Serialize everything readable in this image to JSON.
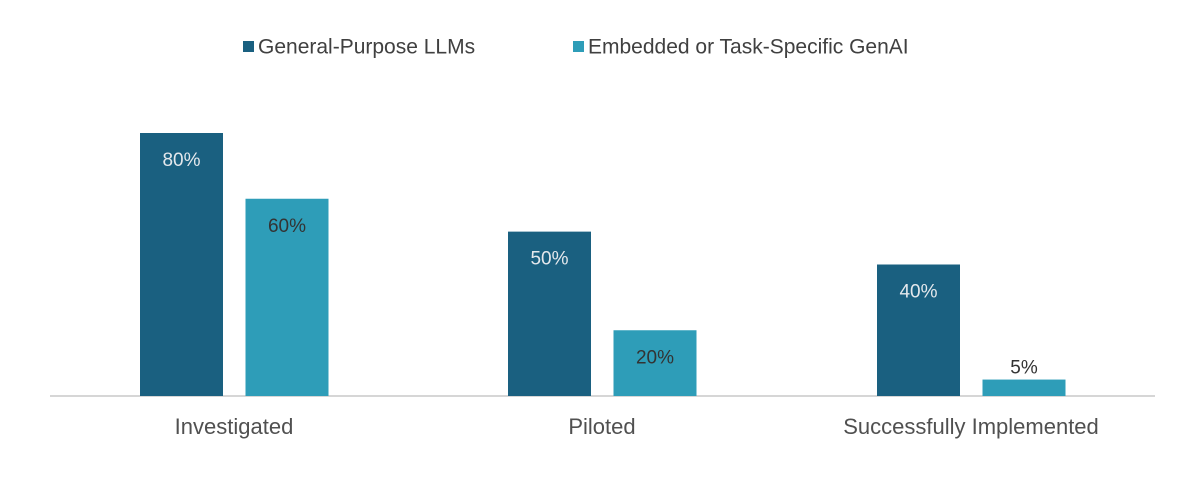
{
  "chart_data": {
    "type": "bar",
    "categories": [
      "Investigated",
      "Piloted",
      "Successfully Implemented"
    ],
    "series": [
      {
        "name": "General-Purpose LLMs",
        "color": "#1a6080",
        "values": [
          80,
          50,
          40
        ],
        "value_labels": [
          "80%",
          "50%",
          "40%"
        ]
      },
      {
        "name": "Embedded or Task-Specific GenAI",
        "color": "#2e9db8",
        "values": [
          60,
          20,
          5
        ],
        "value_labels": [
          "60%",
          "20%",
          "5%"
        ]
      }
    ]
  }
}
